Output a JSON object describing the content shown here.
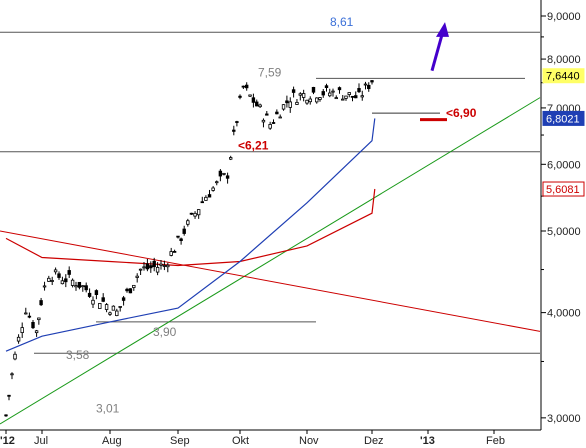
{
  "chart_data": {
    "type": "line",
    "title": "",
    "xlabel": "",
    "ylabel": "",
    "y_scale": "log",
    "ylim": [
      2.95,
      9.3
    ],
    "x_tick_labels": [
      "'12",
      "Jul",
      "Aug",
      "Sep",
      "Okt",
      "Nov",
      "Dez",
      "'13",
      "Feb"
    ],
    "y_tick_labels": [
      "9,0000",
      "8,0000",
      "7,0000",
      "6,0000",
      "5,0000",
      "4,0000",
      "3,0000"
    ],
    "price_badges": [
      {
        "label": "7,6440",
        "value": 7.644,
        "color": "#ffff66",
        "text_color": "#000000"
      },
      {
        "label": "6,8021",
        "value": 6.8021,
        "color": "#1f3fb4",
        "text_color": "#ffffff"
      },
      {
        "label": "5,6081",
        "value": 5.6081,
        "color": "#ffffff",
        "text_color": "#cc0000"
      }
    ],
    "horizontal_levels": [
      {
        "label": "8,61",
        "value": 8.61,
        "label_color": "#3a6fd8"
      },
      {
        "label": "7,59",
        "value": 7.59,
        "label_color": "#808080"
      },
      {
        "label": "<6,90",
        "value": 6.9,
        "label_color": "#cc0000"
      },
      {
        "label": "<6,21",
        "value": 6.21,
        "label_color": "#cc0000"
      },
      {
        "label": "3,90",
        "value": 3.9,
        "label_color": "#808080"
      },
      {
        "label": "3,58",
        "value": 3.58,
        "label_color": "#808080"
      },
      {
        "label": "3,01",
        "value": 3.01,
        "label_color": "#808080"
      }
    ],
    "price_series": {
      "name": "",
      "x": [
        "Jun 2012",
        "early Jul",
        "mid Jul",
        "late Jul",
        "early Aug",
        "mid Aug",
        "late Aug",
        "early Sep",
        "mid Sep",
        "late Sep",
        "early Okt",
        "mid Okt",
        "late Okt",
        "early Nov",
        "mid Nov",
        "late Nov",
        "early Dez",
        "mid Dez",
        "late Dez",
        "early Jan 2013"
      ],
      "values": [
        3.02,
        3.55,
        4.05,
        3.8,
        4.45,
        4.35,
        4.15,
        4.0,
        4.5,
        4.55,
        5.0,
        5.5,
        5.85,
        7.4,
        6.7,
        7.2,
        7.3,
        7.3,
        7.2,
        7.644
      ]
    },
    "ma_series": {
      "name": "",
      "color": "#1f3fb4",
      "x": [
        "Jun 2012",
        "Jul",
        "Aug",
        "Sep",
        "Okt",
        "Nov",
        "Dez",
        "early Jan 2013"
      ],
      "values": [
        3.6,
        3.75,
        3.9,
        4.05,
        4.6,
        5.4,
        6.4,
        6.8021
      ]
    },
    "ma_long_series": {
      "name": "",
      "color": "#cc0000",
      "x": [
        "Jun 2012",
        "Jul",
        "Aug",
        "Sep",
        "Okt",
        "Nov",
        "Dez",
        "early Jan 2013"
      ],
      "values": [
        4.9,
        4.65,
        4.6,
        4.55,
        4.6,
        4.8,
        5.25,
        5.6081
      ]
    },
    "trend_lines": [
      {
        "kind": "support",
        "color": "#1a9a1a",
        "from_value": 2.95,
        "to_value": 7.2
      },
      {
        "kind": "resistance",
        "color": "#cc0000",
        "from_value": 5.0,
        "to_value": 3.8
      }
    ],
    "grid": false,
    "legend": "none"
  }
}
